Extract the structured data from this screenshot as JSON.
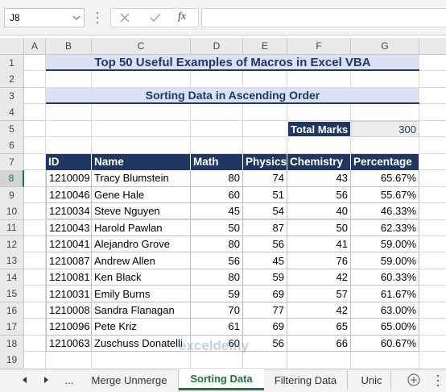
{
  "name_box": "J8",
  "function_label": "fx",
  "column_headers": [
    "A",
    "B",
    "C",
    "D",
    "E",
    "F",
    "G"
  ],
  "row_headers": [
    1,
    2,
    3,
    4,
    5,
    6,
    7,
    8,
    9,
    10,
    11,
    12,
    13,
    14,
    15,
    16,
    17,
    18,
    19
  ],
  "title": "Top 50 Useful Examples of Macros in Excel VBA",
  "subtitle": "Sorting Data in Ascending Order",
  "total_marks": {
    "label": "Total Marks",
    "value": 300
  },
  "table": {
    "columns": [
      "ID",
      "Name",
      "Math",
      "Physics",
      "Chemistry",
      "Percentage"
    ],
    "rows": [
      [
        "1210009",
        "Tracy Blumstein",
        80,
        74,
        43,
        "65.67%"
      ],
      [
        "1210046",
        "Gene Hale",
        60,
        51,
        56,
        "55.67%"
      ],
      [
        "1210034",
        "Steve Nguyen",
        45,
        54,
        40,
        "46.33%"
      ],
      [
        "1210043",
        "Harold Pawlan",
        50,
        87,
        50,
        "62.33%"
      ],
      [
        "1210041",
        "Alejandro Grove",
        80,
        56,
        41,
        "59.00%"
      ],
      [
        "1210087",
        "Andrew Allen",
        56,
        45,
        76,
        "59.00%"
      ],
      [
        "1210081",
        "Ken Black",
        80,
        59,
        42,
        "60.33%"
      ],
      [
        "1210031",
        "Emily Burns",
        59,
        69,
        57,
        "61.67%"
      ],
      [
        "1210008",
        "Sandra Flanagan",
        70,
        77,
        42,
        "63.00%"
      ],
      [
        "1210096",
        "Pete Kriz",
        61,
        69,
        65,
        "65.00%"
      ],
      [
        "1210063",
        "Zuschuss Donatelli",
        60,
        56,
        66,
        "60.67%"
      ]
    ]
  },
  "tab_ellipsis": "...",
  "sheet_tabs": [
    "Merge Unmerge",
    "Sorting Data",
    "Filtering Data",
    "Unic"
  ],
  "active_tab": 1,
  "watermark": "exceldemy"
}
